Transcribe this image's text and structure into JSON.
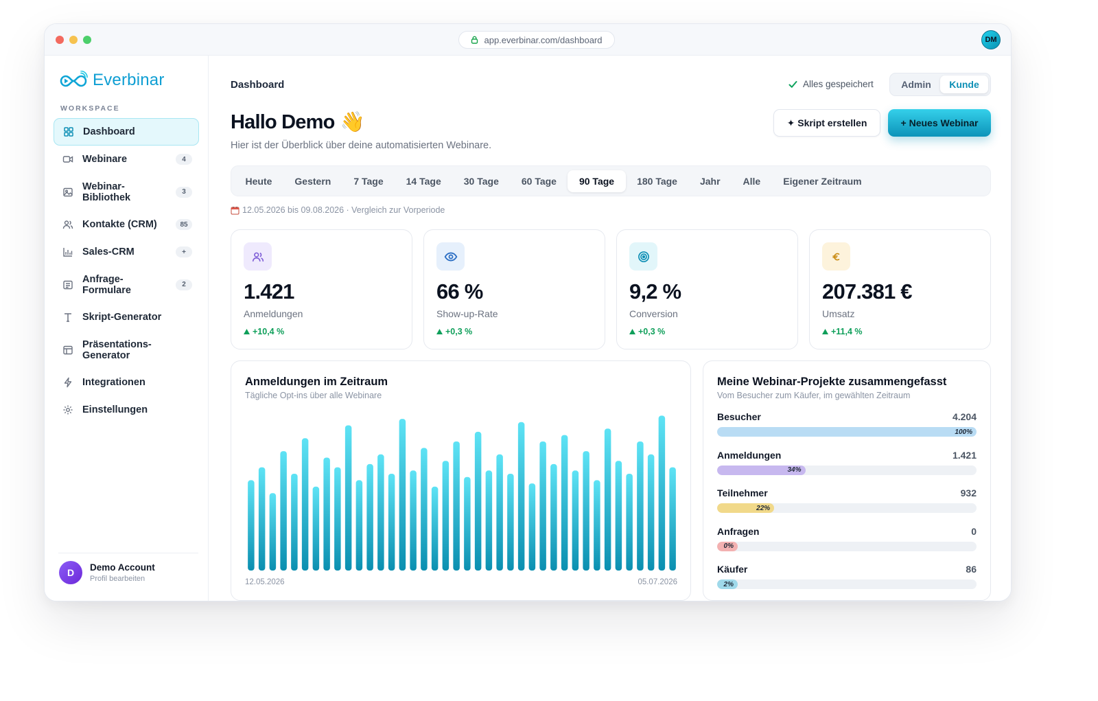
{
  "browser": {
    "url": "app.everbinar.com/dashboard",
    "user_initials": "DM"
  },
  "brand": {
    "name": "Everbinar"
  },
  "sidebar": {
    "section_label": "WORKSPACE",
    "items": [
      {
        "label": "Dashboard",
        "icon": "grid-icon",
        "badge": "",
        "active": true
      },
      {
        "label": "Webinare",
        "icon": "video-icon",
        "badge": "4"
      },
      {
        "label": "Webinar-Bibliothek",
        "icon": "image-icon",
        "badge": "3"
      },
      {
        "label": "Kontakte (CRM)",
        "icon": "users-icon",
        "badge": "85"
      },
      {
        "label": "Sales-CRM",
        "icon": "bar-chart-icon",
        "badge": "+"
      },
      {
        "label": "Anfrage-Formulare",
        "icon": "form-icon",
        "badge": "2"
      },
      {
        "label": "Skript-Generator",
        "icon": "text-icon",
        "badge": ""
      },
      {
        "label": "Präsentations-Generator",
        "icon": "layout-icon",
        "badge": ""
      },
      {
        "label": "Integrationen",
        "icon": "bolt-icon",
        "badge": ""
      },
      {
        "label": "Einstellungen",
        "icon": "gear-icon",
        "badge": ""
      }
    ],
    "profile": {
      "initial": "D",
      "name": "Demo Account",
      "sub": "Profil bearbeiten"
    }
  },
  "header": {
    "breadcrumb": "Dashboard",
    "saved_status": "Alles gespeichert",
    "roles": [
      "Admin",
      "Kunde"
    ],
    "active_role": "Kunde",
    "greeting": "Hallo Demo",
    "greeting_emoji": "👋",
    "subtitle": "Hier ist der Überblick über deine automatisierten Webinare.",
    "script_button": "✦ Skript erstellen",
    "new_button": "+ Neues Webinar"
  },
  "ranges": {
    "options": [
      "Heute",
      "Gestern",
      "7 Tage",
      "14 Tage",
      "30 Tage",
      "60 Tage",
      "90 Tage",
      "180 Tage",
      "Jahr",
      "Alle",
      "Eigener Zeitraum"
    ],
    "active": "90 Tage",
    "period_text": "12.05.2026 bis 09.08.2026 · Vergleich zur Vorperiode"
  },
  "kpis": [
    {
      "value": "1.421",
      "label": "Anmeldungen",
      "delta": "+10,4 %",
      "icon": "users-icon",
      "bg": "#efeafd",
      "fg": "#7c5bd6"
    },
    {
      "value": "66 %",
      "label": "Show-up-Rate",
      "delta": "+0,3 %",
      "icon": "eye-icon",
      "bg": "#e6f0fc",
      "fg": "#2d6fc4"
    },
    {
      "value": "9,2 %",
      "label": "Conversion",
      "delta": "+0,3 %",
      "icon": "target-icon",
      "bg": "#e2f6fa",
      "fg": "#0e8fb5"
    },
    {
      "value": "207.381 €",
      "label": "Umsatz",
      "delta": "+11,4 %",
      "icon": "euro-icon",
      "bg": "#fdf3dc",
      "fg": "#c98a10"
    }
  ],
  "chart": {
    "title": "Anmeldungen im Zeitraum",
    "subtitle": "Tägliche Opt-ins über alle Webinare",
    "x_start": "12.05.2026",
    "x_end": "05.07.2026"
  },
  "chart_data": {
    "type": "bar",
    "title": "Anmeldungen im Zeitraum",
    "subtitle": "Tägliche Opt-ins über alle Webinare",
    "x_range": [
      "12.05.2026",
      "05.07.2026"
    ],
    "values": [
      28,
      32,
      24,
      37,
      30,
      41,
      26,
      35,
      32,
      45,
      28,
      33,
      36,
      30,
      47,
      31,
      38,
      26,
      34,
      40,
      29,
      43,
      31,
      36,
      30,
      46,
      27,
      40,
      33,
      42,
      31,
      37,
      28,
      44,
      34,
      30,
      40,
      36,
      48,
      32
    ],
    "ylim": [
      0,
      50
    ],
    "color": "#22c7e3"
  },
  "funnel": {
    "title": "Meine Webinar-Projekte zusammengefasst",
    "subtitle": "Vom Besucher zum Käufer, im gewählten Zeitraum",
    "rows": [
      {
        "name": "Besucher",
        "value": "4.204",
        "pct": "100%",
        "fraction": 1.0,
        "color": "#b9dcf4"
      },
      {
        "name": "Anmeldungen",
        "value": "1.421",
        "pct": "34%",
        "fraction": 0.34,
        "color": "#c7b8ef"
      },
      {
        "name": "Teilnehmer",
        "value": "932",
        "pct": "22%",
        "fraction": 0.22,
        "color": "#f1d98a"
      },
      {
        "name": "Anfragen",
        "value": "0",
        "pct": "0%",
        "fraction": 0.0,
        "color": "#f3b1b1"
      },
      {
        "name": "Käufer",
        "value": "86",
        "pct": "2%",
        "fraction": 0.02,
        "color": "#9fd9ea"
      }
    ]
  }
}
